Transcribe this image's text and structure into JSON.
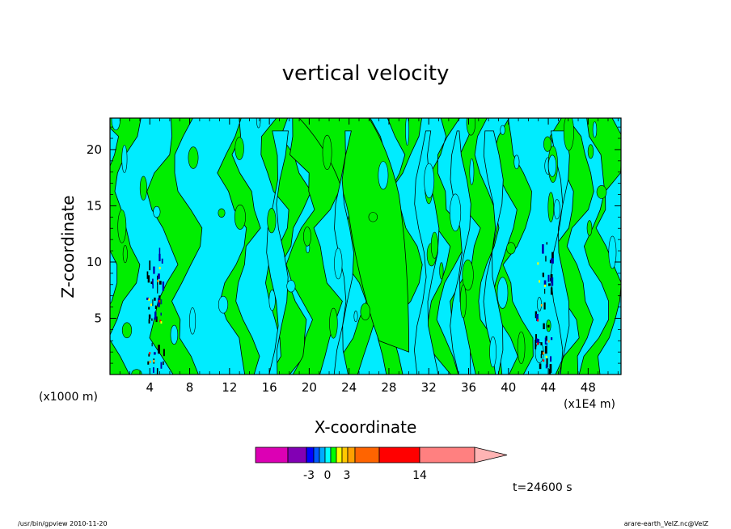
{
  "chart_data": {
    "type": "heatmap",
    "subtype": "filled contour",
    "title": "vertical velocity",
    "xlabel": "X-coordinate",
    "ylabel": "Z-coordinate",
    "x_unit_left": "(x1000 m)",
    "x_unit_right": "(x1E4 m)",
    "xticks": [
      "4",
      "8",
      "12",
      "16",
      "20",
      "24",
      "28",
      "32",
      "36",
      "40",
      "44",
      "48"
    ],
    "yticks": [
      "5",
      "10",
      "15",
      "20"
    ],
    "xlim": [
      0,
      51.3
    ],
    "ylim": [
      0,
      22.8
    ],
    "dominant_levels": [
      "cyan (negative, -3 to 0)",
      "green (positive, 0 to 3)"
    ],
    "strong_updraft_columns_x": [
      4.5,
      43.5
    ],
    "colorbar": {
      "labels": [
        "-3",
        "0",
        "3",
        "14"
      ],
      "colors": [
        "#dc00b4",
        "#8200b4",
        "#0000ff",
        "#005aff",
        "#00aaff",
        "#00ffff",
        "#00ff00",
        "#ffff00",
        "#ffc800",
        "#ffa000",
        "#ff6400",
        "#ff0000",
        "#ff8080",
        "#ffb4b4"
      ]
    },
    "time_label": "t=24600 s"
  },
  "footer": {
    "left": "/usr/bin/gpview   2010-11-20",
    "right": "arare-earth_VelZ.nc@VelZ"
  }
}
